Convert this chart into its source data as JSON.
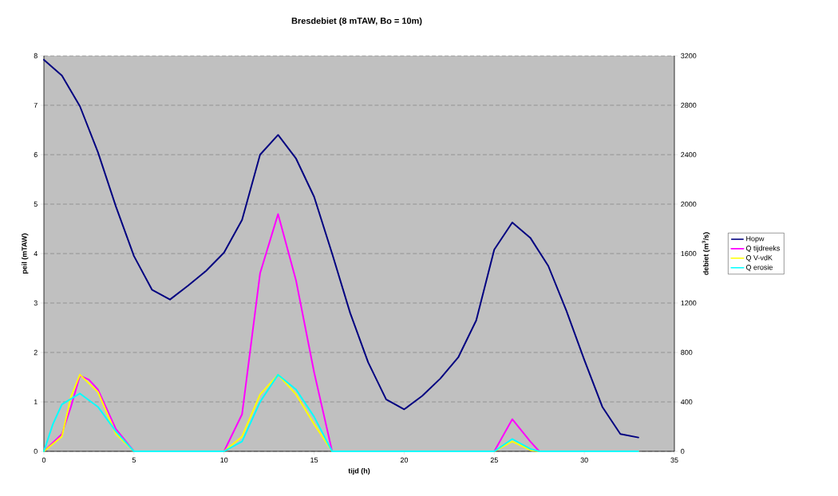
{
  "chart_data": {
    "type": "line",
    "title": "Bresdebiet (8 mTAW, Bo = 10m)",
    "xlabel": "tijd (h)",
    "ylabel": "peil (mTAW)",
    "y2label": "debiet (m$^{3}$/s)",
    "xlim": [
      0,
      35
    ],
    "xticks": [
      0,
      5,
      10,
      15,
      20,
      25,
      30,
      35
    ],
    "ylim": [
      0,
      8
    ],
    "yticks": [
      0,
      1,
      2,
      3,
      4,
      5,
      6,
      7,
      8
    ],
    "y2lim": [
      0,
      3200
    ],
    "y2ticks": [
      0,
      400,
      800,
      1200,
      1600,
      2000,
      2400,
      2800,
      3200
    ],
    "grid": "y",
    "legend": "right",
    "series": [
      {
        "name": "Hopw",
        "color": "#000080",
        "axis": "y",
        "x": [
          0,
          1,
          2,
          3,
          4,
          5,
          6,
          7,
          8,
          9,
          10,
          11,
          12,
          13,
          14,
          15,
          16,
          17,
          18,
          19,
          20,
          21,
          22,
          23,
          24,
          25,
          26,
          27,
          28,
          29,
          30,
          31,
          32,
          33
        ],
        "values": [
          7.92,
          7.6,
          6.98,
          6.05,
          4.95,
          3.95,
          3.27,
          3.07,
          3.35,
          3.65,
          4.02,
          4.68,
          6.0,
          6.4,
          5.92,
          5.15,
          4.0,
          2.8,
          1.8,
          1.05,
          0.85,
          1.12,
          1.47,
          1.9,
          2.65,
          4.08,
          4.63,
          4.32,
          3.75,
          2.85,
          1.85,
          0.9,
          0.35,
          0.28
        ]
      },
      {
        "name": "Q tijdreeks",
        "color": "#ff00ff",
        "axis": "y2",
        "x": [
          0,
          1,
          1.5,
          2,
          2.5,
          3,
          4,
          5,
          10,
          11,
          12,
          13,
          14,
          15,
          16,
          25,
          26,
          27,
          27.5,
          33
        ],
        "values": [
          0,
          140,
          360,
          612,
          580,
          500,
          180,
          0,
          0,
          300,
          1440,
          1920,
          1380,
          640,
          0,
          0,
          260,
          80,
          0,
          0
        ]
      },
      {
        "name": "Q V-vdK",
        "color": "#ffff00",
        "axis": "y2",
        "x": [
          0,
          1,
          1.5,
          2,
          3,
          4,
          5,
          10,
          11,
          12,
          13,
          14,
          15,
          16,
          25,
          26,
          27,
          27.5,
          33
        ],
        "values": [
          0,
          120,
          440,
          620,
          480,
          140,
          0,
          0,
          120,
          460,
          620,
          460,
          220,
          0,
          0,
          80,
          10,
          0,
          0
        ]
      },
      {
        "name": "Q erosie",
        "color": "#00ffff",
        "axis": "y2",
        "x": [
          0,
          0.5,
          1,
          2,
          3,
          4,
          5,
          10,
          11,
          12,
          13,
          14,
          15,
          16,
          25,
          26,
          27,
          27.5,
          33
        ],
        "values": [
          0,
          220,
          380,
          468,
          360,
          160,
          0,
          0,
          80,
          400,
          620,
          500,
          280,
          0,
          0,
          100,
          20,
          0,
          0
        ]
      }
    ]
  }
}
